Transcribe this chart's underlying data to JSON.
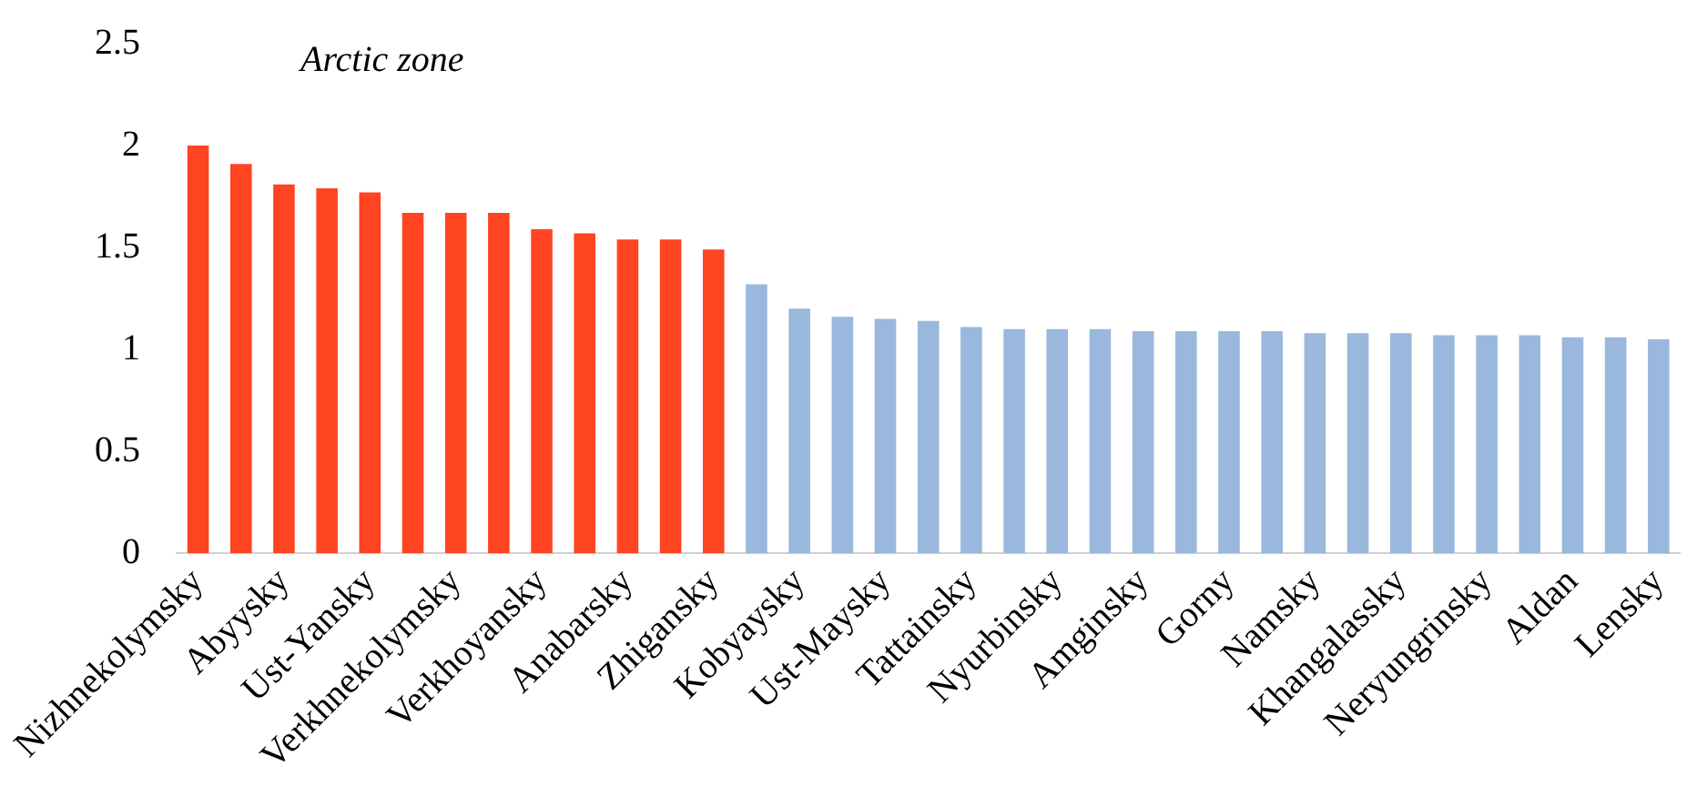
{
  "chart_data": {
    "type": "bar",
    "categories": [
      "Nizhnekolymsky",
      null,
      "Abyysky",
      null,
      "Ust-Yansky",
      null,
      "Verkhnekolymsky",
      null,
      "Verkhoyansky",
      null,
      "Anabarsky",
      null,
      "Zhigansky",
      null,
      "Kobyaysky",
      null,
      "Ust-Maysky",
      null,
      "Tattainsky",
      null,
      "Nyurbinsky",
      null,
      "Amginsky",
      null,
      "Gorny",
      null,
      "Namsky",
      null,
      "Khangalassky",
      null,
      "Neryungrinsky",
      null,
      "Aldan",
      null,
      "Lensky"
    ],
    "values": [
      2.0,
      1.91,
      1.81,
      1.79,
      1.77,
      1.67,
      1.67,
      1.67,
      1.59,
      1.57,
      1.54,
      1.54,
      1.49,
      1.32,
      1.2,
      1.16,
      1.15,
      1.14,
      1.11,
      1.1,
      1.1,
      1.1,
      1.09,
      1.09,
      1.09,
      1.09,
      1.08,
      1.08,
      1.08,
      1.07,
      1.07,
      1.07,
      1.06,
      1.06,
      1.05
    ],
    "colors": [
      "#ff4422",
      "#ff4422",
      "#ff4422",
      "#ff4422",
      "#ff4422",
      "#ff4422",
      "#ff4422",
      "#ff4422",
      "#ff4422",
      "#ff4422",
      "#ff4422",
      "#ff4422",
      "#ff4422",
      "#9ab8dd",
      "#9ab8dd",
      "#9ab8dd",
      "#9ab8dd",
      "#9ab8dd",
      "#9ab8dd",
      "#9ab8dd",
      "#9ab8dd",
      "#9ab8dd",
      "#9ab8dd",
      "#9ab8dd",
      "#9ab8dd",
      "#9ab8dd",
      "#9ab8dd",
      "#9ab8dd",
      "#9ab8dd",
      "#9ab8dd",
      "#9ab8dd",
      "#9ab8dd",
      "#9ab8dd",
      "#9ab8dd",
      "#9ab8dd"
    ],
    "ylim": [
      0,
      2.5
    ],
    "yticks": [
      0,
      0.5,
      1,
      1.5,
      2,
      2.5
    ],
    "grid": false,
    "legend": false,
    "annotations": [
      "Arctic zone"
    ]
  }
}
